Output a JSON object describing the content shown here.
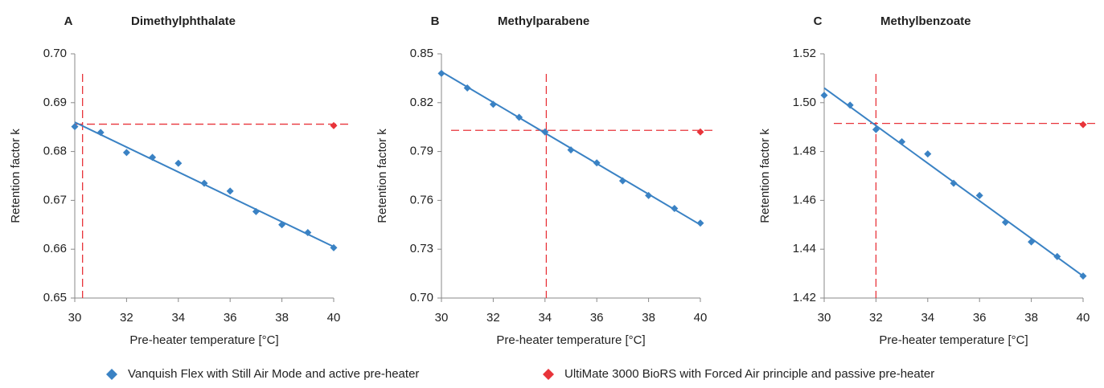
{
  "chart_data": [
    {
      "type": "scatter",
      "label": "A",
      "title": "Dimethylphthalate",
      "x_label": "Pre-heater temperature [°C]",
      "y_label": "Retention factor k",
      "xlim": [
        30,
        40
      ],
      "xticks": [
        30,
        32,
        34,
        36,
        38,
        40
      ],
      "ylim": [
        0.65,
        0.7
      ],
      "yticks": [
        0.65,
        0.66,
        0.67,
        0.68,
        0.69,
        {
          "value": 0.7,
          "label": "0.70"
        }
      ],
      "series": [
        {
          "name": "Vanquish Flex with Still Air Mode and active pre-heater",
          "color": "#3a82c4",
          "x": [
            30,
            31,
            32,
            33,
            34,
            35,
            36,
            37,
            38,
            39,
            40
          ],
          "values": [
            0.6851,
            0.6839,
            0.6798,
            0.6788,
            0.6776,
            0.6735,
            0.6719,
            0.6677,
            0.665,
            0.6634,
            0.6603
          ]
        },
        {
          "name": "UltiMate 3000 BioRS with Forced Air principle and passive pre-heater",
          "color": "#e8343a",
          "x": [
            40
          ],
          "values": [
            0.6853
          ]
        }
      ],
      "trendline": {
        "x": [
          30,
          40
        ],
        "values": [
          0.686,
          0.6605
        ]
      },
      "vline": 30.3,
      "hline": 0.6856
    },
    {
      "type": "scatter",
      "label": "B",
      "title": "Methylparabene",
      "x_label": "Pre-heater temperature [°C]",
      "y_label": "Retention factor k",
      "xlim": [
        30,
        40
      ],
      "xticks": [
        30,
        32,
        34,
        36,
        38,
        40
      ],
      "ylim": [
        0.7,
        0.85
      ],
      "yticks": [
        {
          "value": 0.7,
          "label": "0.70"
        },
        0.73,
        0.76,
        0.79,
        0.82,
        0.85
      ],
      "series": [
        {
          "name": "Vanquish Flex with Still Air Mode and active pre-heater",
          "color": "#3a82c4",
          "x": [
            30,
            31,
            32,
            33,
            34,
            35,
            36,
            37,
            38,
            39,
            40
          ],
          "values": [
            0.838,
            0.829,
            0.819,
            0.811,
            0.802,
            0.791,
            0.783,
            0.772,
            0.763,
            0.755,
            0.746
          ]
        },
        {
          "name": "UltiMate 3000 BioRS with Forced Air principle and passive pre-heater",
          "color": "#e8343a",
          "x": [
            40
          ],
          "values": [
            0.802
          ]
        }
      ],
      "trendline": {
        "x": [
          30,
          40
        ],
        "values": [
          0.839,
          0.745
        ]
      },
      "vline": 34.05,
      "hline": 0.803
    },
    {
      "type": "scatter",
      "label": "C",
      "title": "Methylbenzoate",
      "x_label": "Pre-heater temperature [°C]",
      "y_label": "Retention factor k",
      "xlim": [
        30,
        40
      ],
      "xticks": [
        30,
        32,
        34,
        36,
        38,
        40
      ],
      "ylim": [
        1.42,
        1.52
      ],
      "yticks": [
        1.42,
        1.44,
        1.46,
        1.48,
        {
          "value": 1.5,
          "label": "1.50"
        },
        1.52
      ],
      "series": [
        {
          "name": "Vanquish Flex with Still Air Mode and active pre-heater",
          "color": "#3a82c4",
          "x": [
            30,
            31,
            32,
            33,
            34,
            35,
            36,
            37,
            38,
            39,
            40
          ],
          "values": [
            1.503,
            1.499,
            1.489,
            1.484,
            1.479,
            1.467,
            1.462,
            1.451,
            1.443,
            1.437,
            1.429
          ]
        },
        {
          "name": "UltiMate 3000 BioRS with Forced Air principle and passive pre-heater",
          "color": "#e8343a",
          "x": [
            40
          ],
          "values": [
            1.491
          ]
        }
      ],
      "trendline": {
        "x": [
          30,
          40
        ],
        "values": [
          1.506,
          1.429
        ]
      },
      "vline": 32,
      "hline": 1.4915
    }
  ]
}
